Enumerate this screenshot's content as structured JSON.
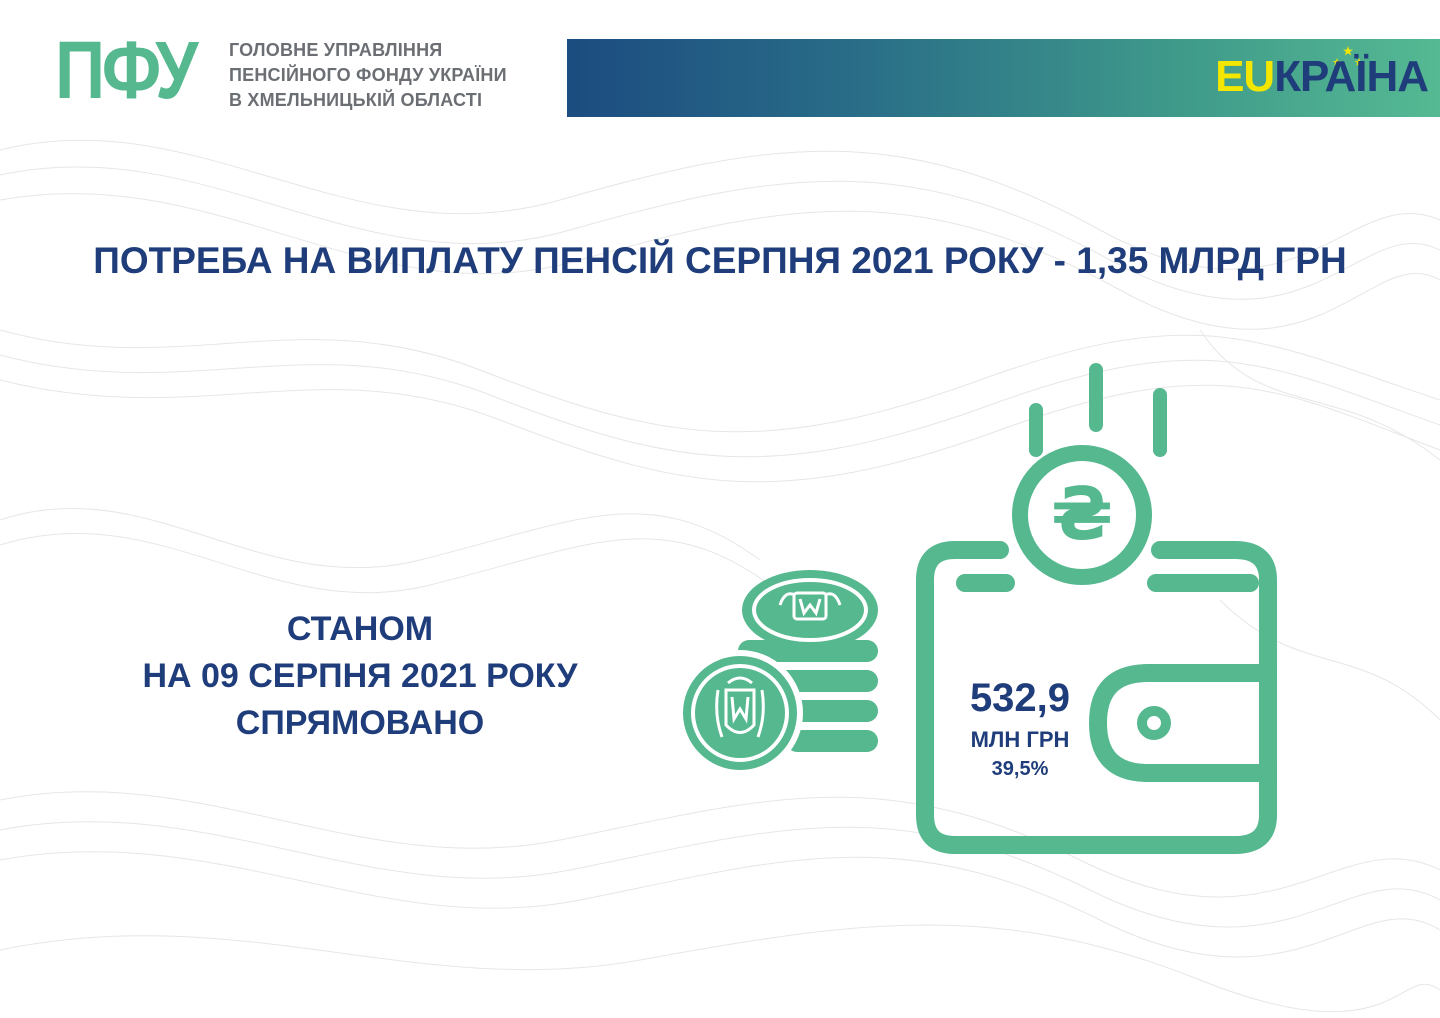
{
  "header": {
    "logo_text": "ПФУ",
    "org_lines": [
      "ГОЛОВНЕ УПРАВЛІННЯ",
      "ПЕНСІЙНОГО ФОНДУ УКРАЇНИ",
      "В ХМЕЛЬНИЦЬКІЙ ОБЛАСТІ"
    ],
    "campaign_logo": {
      "eu_part": "EU",
      "rest_part": "КРАЇНА"
    }
  },
  "headline": "ПОТРЕБА НА ВИПЛАТУ ПЕНСІЙ СЕРПНЯ 2021 РОКУ - 1,35 МЛРД ГРН",
  "status_lines": [
    "СТАНОМ",
    "НА 09 СЕРПНЯ 2021 РОКУ",
    "СПРЯМОВАНО"
  ],
  "wallet": {
    "coin_symbol": "₴",
    "amount": "532,9",
    "unit": "МЛН ГРН",
    "percent": "39,5%"
  },
  "colors": {
    "brand_green": "#55b88f",
    "navy": "#1f3d7a",
    "gray_text": "#6b6f74",
    "eu_yellow": "#f3e600",
    "banner_start": "#1c4c80",
    "banner_end": "#55b993"
  },
  "icons": [
    "wallet-icon",
    "hryvnia-coin-icon",
    "coin-stack-icon"
  ]
}
